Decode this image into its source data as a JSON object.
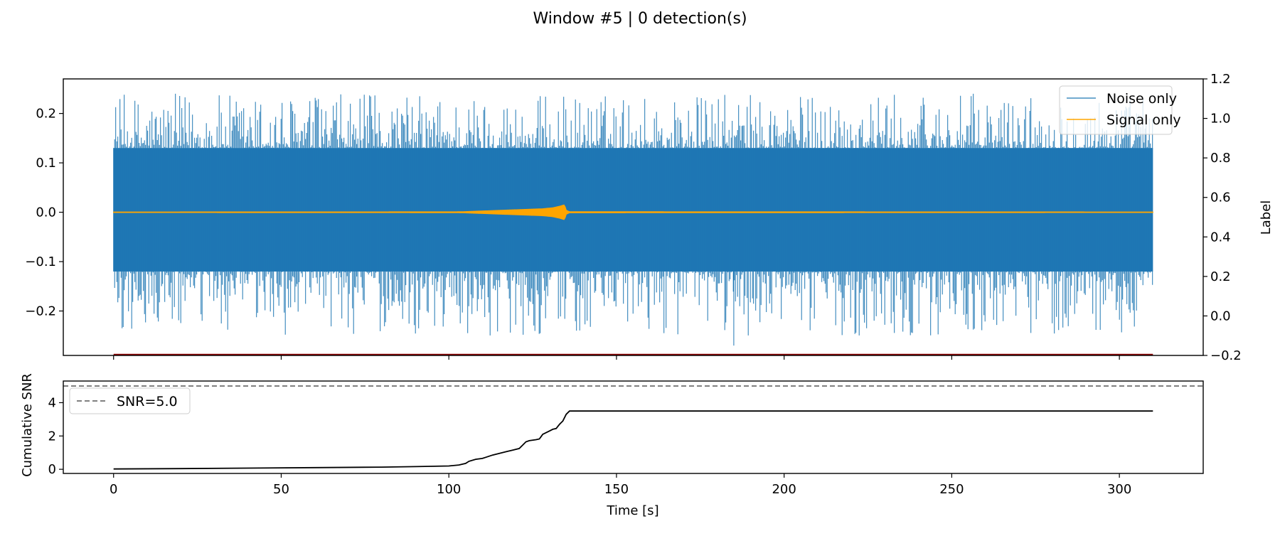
{
  "figure": {
    "suptitle": "Window #5 | 0 detection(s)"
  },
  "colors": {
    "noise": "#1f77b4",
    "signal": "#ffa500",
    "label": "#8b0000",
    "snr": "#000000",
    "threshold": "#808080"
  },
  "chart_data": [
    {
      "type": "line",
      "panel": "top",
      "title": "",
      "xlabel": "",
      "ylabel": "",
      "y2label": "Label",
      "xlim": [
        -15,
        325
      ],
      "ylim": [
        -0.29,
        0.27
      ],
      "y2lim": [
        -0.2,
        1.2
      ],
      "xticks": [
        0,
        50,
        100,
        150,
        200,
        250,
        300
      ],
      "yticks": [
        -0.2,
        -0.1,
        0.0,
        0.1,
        0.2
      ],
      "yticklabels": [
        "−0.2",
        "−0.1",
        "0.0",
        "0.1",
        "0.2"
      ],
      "y2ticks": [
        -0.2,
        0.0,
        0.2,
        0.4,
        0.6,
        0.8,
        1.0,
        1.2
      ],
      "y2ticklabels": [
        "−0.2",
        "0.0",
        "0.2",
        "0.4",
        "0.6",
        "0.8",
        "1.0",
        "1.2"
      ],
      "grid": false,
      "legend": "top-right",
      "series": [
        {
          "name": "Noise only",
          "kind": "noise",
          "x_range": [
            0,
            310
          ],
          "envelope_x": [
            0,
            20,
            50,
            100,
            150,
            200,
            250,
            300,
            310
          ],
          "envelope_upper": [
            0.13,
            0.13,
            0.13,
            0.13,
            0.13,
            0.13,
            0.13,
            0.13,
            0.13
          ],
          "envelope_lower": [
            -0.12,
            -0.12,
            -0.12,
            -0.12,
            -0.12,
            -0.12,
            -0.12,
            -0.12,
            -0.12
          ],
          "peak_max": 0.24,
          "peak_min": -0.27,
          "note_x_of_min": 185
        },
        {
          "name": "Signal only",
          "kind": "signal",
          "x_range": [
            0,
            310
          ],
          "envelope_x": [
            0,
            100,
            104,
            108,
            112,
            116,
            120,
            124,
            128,
            131,
            133,
            134.5,
            135,
            136,
            310
          ],
          "envelope_amp": [
            0.0005,
            0.0008,
            0.001,
            0.002,
            0.003,
            0.004,
            0.005,
            0.006,
            0.007,
            0.009,
            0.012,
            0.015,
            0.004,
            0.001,
            0.0005
          ]
        },
        {
          "name": "label",
          "kind": "label",
          "axis": "y2",
          "x": [
            0,
            310
          ],
          "y": [
            -0.2,
            -0.2
          ]
        }
      ]
    },
    {
      "type": "line",
      "panel": "bottom",
      "title": "",
      "xlabel": "Time [s]",
      "ylabel": "Cumulative SNR",
      "xlim": [
        -15,
        325
      ],
      "ylim": [
        -0.25,
        5.3
      ],
      "xticks": [
        0,
        50,
        100,
        150,
        200,
        250,
        300
      ],
      "yticks": [
        0,
        2,
        4
      ],
      "grid": false,
      "legend": "top-left",
      "threshold": {
        "name": "SNR=5.0",
        "value": 5.0
      },
      "series": [
        {
          "name": "",
          "x": [
            0,
            20,
            40,
            60,
            80,
            90,
            100,
            103,
            105,
            106,
            108,
            110,
            111,
            113,
            115,
            117,
            119,
            121,
            122,
            123,
            124,
            126,
            127,
            128,
            130,
            131,
            132,
            133,
            134,
            135,
            136,
            150,
            200,
            250,
            300,
            310
          ],
          "y": [
            0.02,
            0.04,
            0.07,
            0.1,
            0.13,
            0.16,
            0.2,
            0.26,
            0.35,
            0.48,
            0.6,
            0.65,
            0.72,
            0.85,
            0.95,
            1.05,
            1.15,
            1.25,
            1.45,
            1.65,
            1.72,
            1.78,
            1.82,
            2.1,
            2.3,
            2.4,
            2.45,
            2.7,
            2.9,
            3.3,
            3.5,
            3.5,
            3.5,
            3.5,
            3.5,
            3.5
          ]
        }
      ]
    }
  ]
}
